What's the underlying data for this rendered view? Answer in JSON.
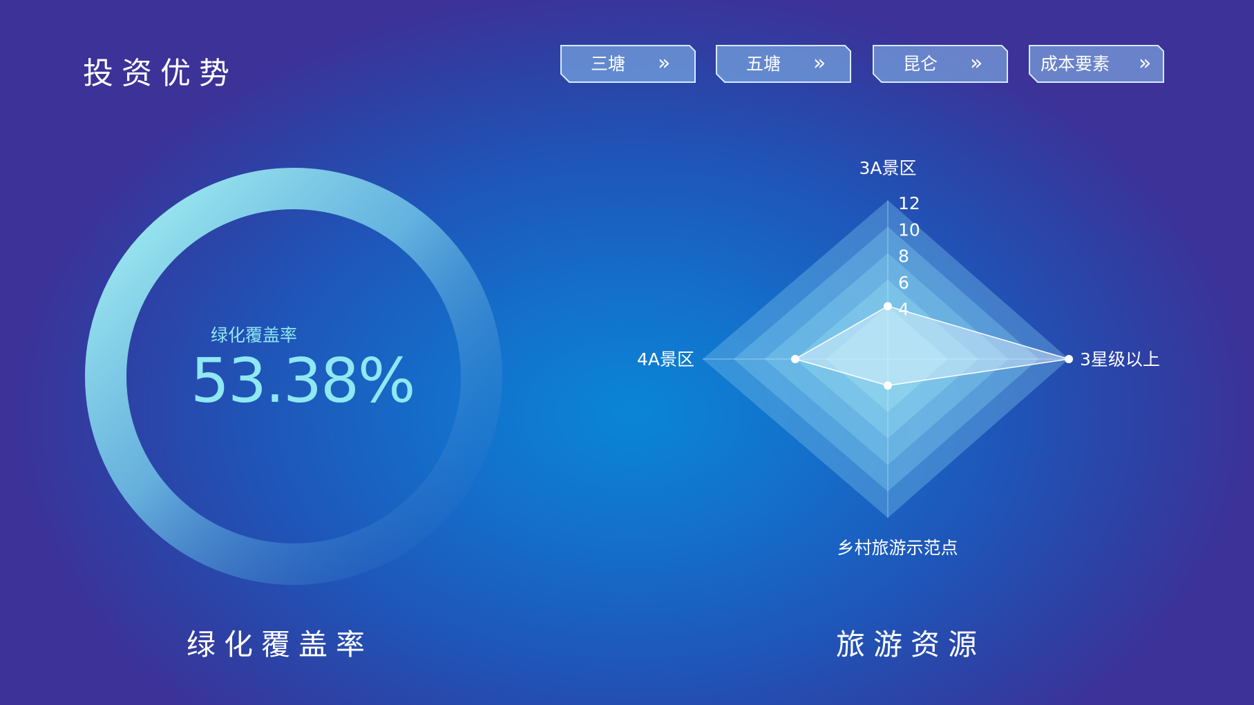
{
  "header": {
    "title": "投资优势",
    "nav": [
      {
        "label": "三塘"
      },
      {
        "label": "五塘"
      },
      {
        "label": "昆仑"
      },
      {
        "label": "成本要素"
      }
    ],
    "chevron_glyph": "»"
  },
  "gauge": {
    "caption": "绿化覆盖率",
    "value_text": "53.38%",
    "section_title": "绿化覆盖率"
  },
  "radar": {
    "section_title": "旅游资源"
  },
  "chart_data": [
    {
      "type": "gauge",
      "label": "绿化覆盖率",
      "value": 53.38,
      "unit": "%",
      "max": 100,
      "colors": {
        "start": "#9aeef2",
        "end": "#2f7fd0"
      }
    },
    {
      "type": "radar",
      "axes": [
        "3A景区",
        "3星级以上",
        "乡村旅游示范点",
        "4A景区"
      ],
      "ticks": [
        4,
        6,
        8,
        10,
        12
      ],
      "range": [
        0,
        12
      ],
      "values": [
        4,
        12,
        2,
        6
      ]
    }
  ],
  "colors": {
    "accent": "#8fe8f2",
    "button_fill": "#7fb7ef",
    "button_border": "#cfe6ff"
  }
}
